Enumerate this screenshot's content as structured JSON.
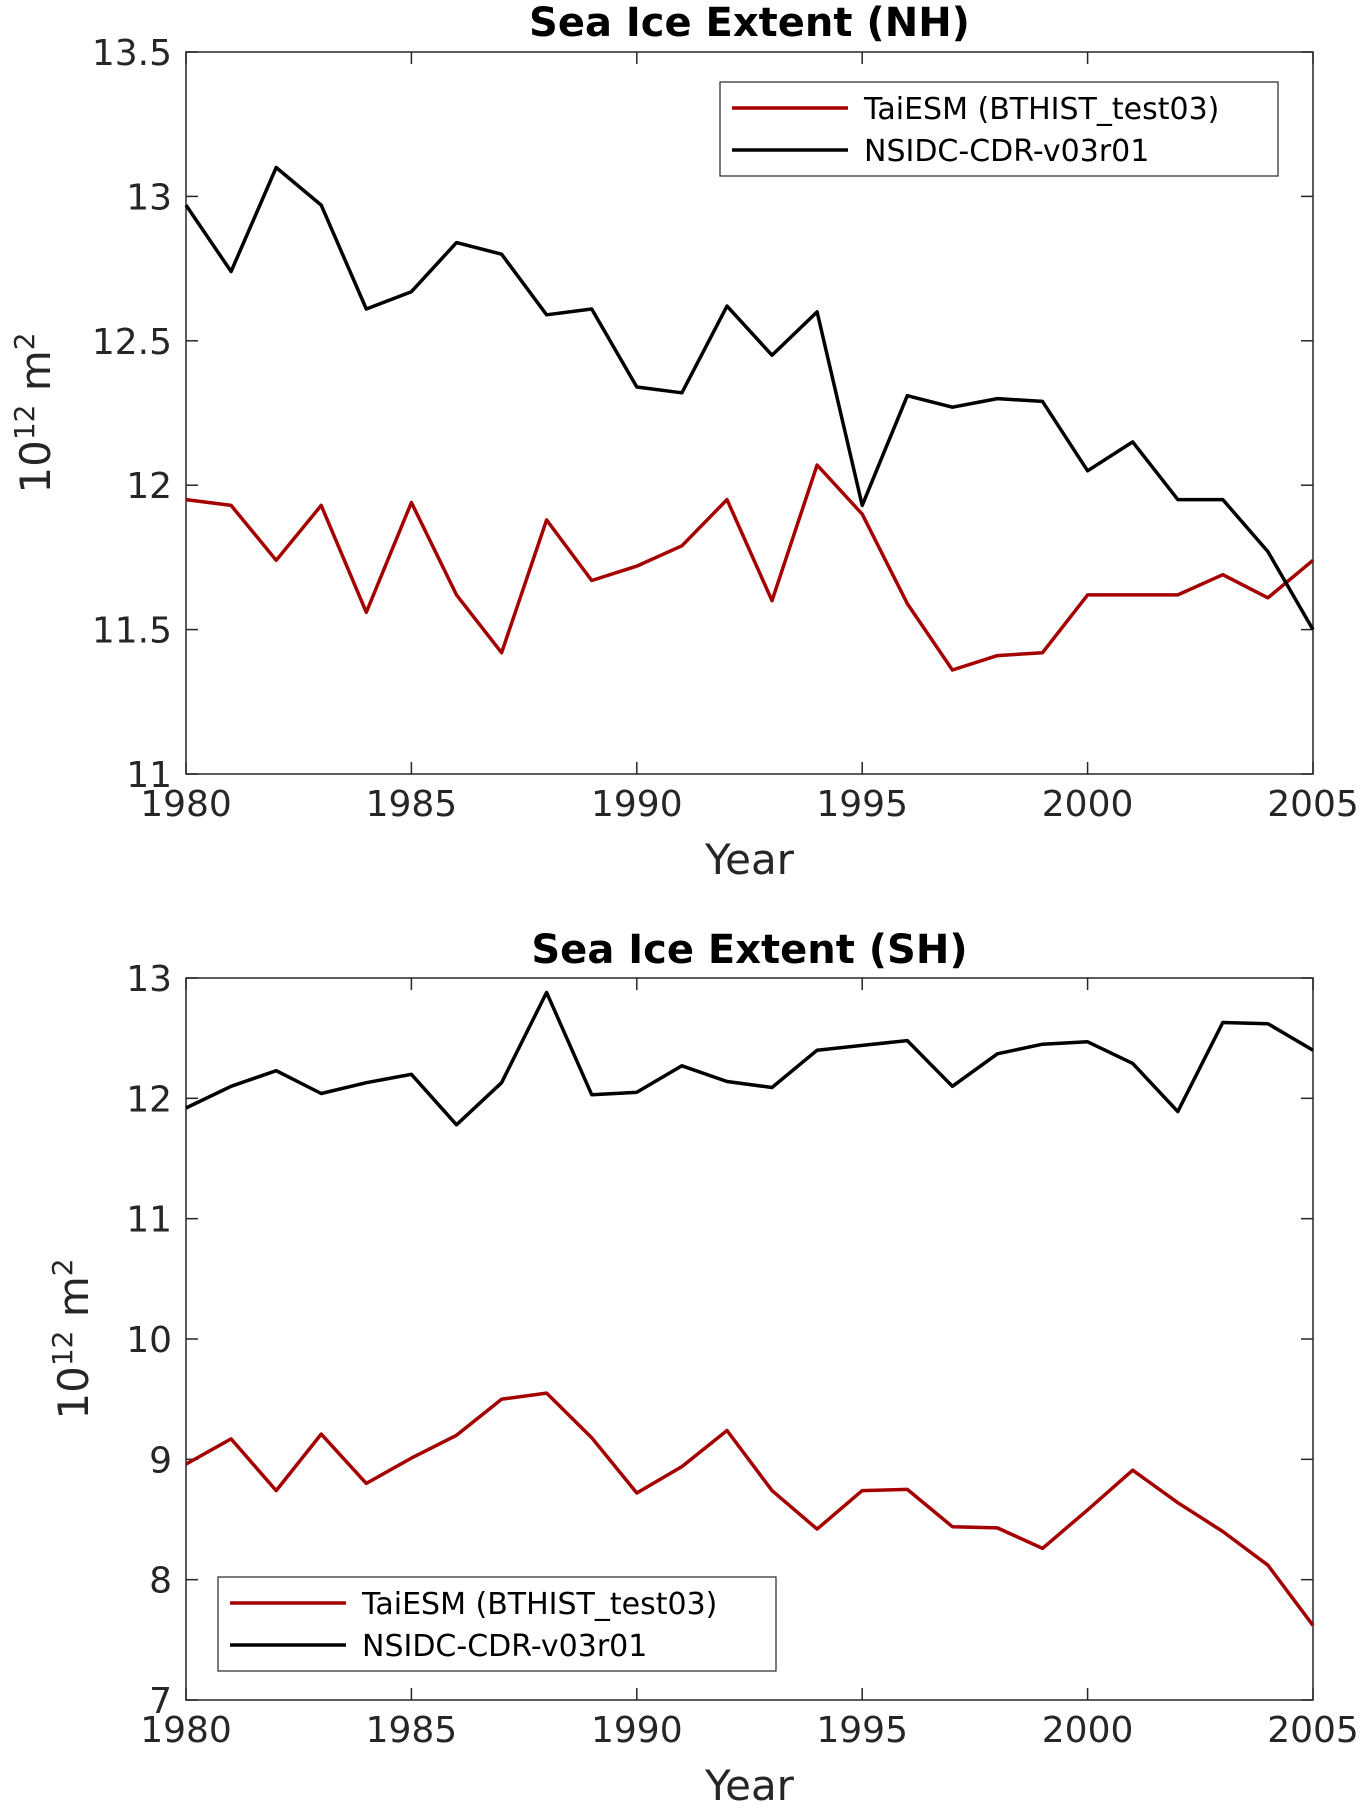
{
  "chart_data": [
    {
      "type": "line",
      "title": "Sea Ice Extent (NH)",
      "xlabel": "Year",
      "ylabel": {
        "base": "10",
        "exp": "12",
        "unit": "m",
        "unit_exp": "2"
      },
      "xlim": [
        1980,
        2005
      ],
      "ylim": [
        11,
        13.5
      ],
      "xticks": [
        "1980",
        "1985",
        "1990",
        "1995",
        "2000",
        "2005"
      ],
      "yticks": [
        "11",
        "11.5",
        "12",
        "12.5",
        "13",
        "13.5"
      ],
      "x": [
        1980,
        1981,
        1982,
        1983,
        1984,
        1985,
        1986,
        1987,
        1988,
        1989,
        1990,
        1991,
        1992,
        1993,
        1994,
        1995,
        1996,
        1997,
        1998,
        1999,
        2000,
        2001,
        2002,
        2003,
        2004,
        2005
      ],
      "series": [
        {
          "name": "TaiESM (BTHIST_test03)",
          "color": "#a50000",
          "values": [
            11.95,
            11.93,
            11.74,
            11.93,
            11.56,
            11.94,
            11.62,
            11.42,
            11.88,
            11.67,
            11.72,
            11.79,
            11.95,
            11.6,
            12.07,
            11.9,
            11.59,
            11.36,
            11.41,
            11.42,
            11.62,
            11.62,
            11.62,
            11.69,
            11.61,
            11.74
          ]
        },
        {
          "name": "NSIDC-CDR-v03r01",
          "color": "#000000",
          "values": [
            12.97,
            12.74,
            13.1,
            12.97,
            12.61,
            12.67,
            12.84,
            12.8,
            12.59,
            12.61,
            12.34,
            12.32,
            12.62,
            12.45,
            12.6,
            11.93,
            12.31,
            12.27,
            12.3,
            12.29,
            12.05,
            12.15,
            11.95,
            11.95,
            11.77,
            11.5
          ]
        }
      ],
      "legend": "top-right",
      "grid": false
    },
    {
      "type": "line",
      "title": "Sea Ice Extent (SH)",
      "xlabel": "Year",
      "ylabel": {
        "base": "10",
        "exp": "12",
        "unit": "m",
        "unit_exp": "2"
      },
      "xlim": [
        1980,
        2005
      ],
      "ylim": [
        7,
        13
      ],
      "xticks": [
        "1980",
        "1985",
        "1990",
        "1995",
        "2000",
        "2005"
      ],
      "yticks": [
        "7",
        "8",
        "9",
        "10",
        "11",
        "12",
        "13"
      ],
      "x": [
        1980,
        1981,
        1982,
        1983,
        1984,
        1985,
        1986,
        1987,
        1988,
        1989,
        1990,
        1991,
        1992,
        1993,
        1994,
        1995,
        1996,
        1997,
        1998,
        1999,
        2000,
        2001,
        2002,
        2003,
        2004,
        2005
      ],
      "series": [
        {
          "name": "TaiESM (BTHIST_test03)",
          "color": "#a50000",
          "values": [
            8.96,
            9.17,
            8.74,
            9.21,
            8.8,
            9.01,
            9.2,
            9.5,
            9.55,
            9.18,
            8.72,
            8.94,
            9.24,
            8.74,
            8.42,
            8.74,
            8.75,
            8.44,
            8.43,
            8.26,
            8.58,
            8.91,
            8.64,
            8.4,
            8.12,
            7.62
          ]
        },
        {
          "name": "NSIDC-CDR-v03r01",
          "color": "#000000",
          "values": [
            11.92,
            12.1,
            12.23,
            12.04,
            12.13,
            12.2,
            11.78,
            12.13,
            12.88,
            12.03,
            12.05,
            12.27,
            12.14,
            12.09,
            12.4,
            12.44,
            12.48,
            12.1,
            12.37,
            12.45,
            12.47,
            12.29,
            11.89,
            12.63,
            12.62,
            12.4
          ]
        }
      ],
      "legend": "bottom-left",
      "grid": false
    }
  ]
}
